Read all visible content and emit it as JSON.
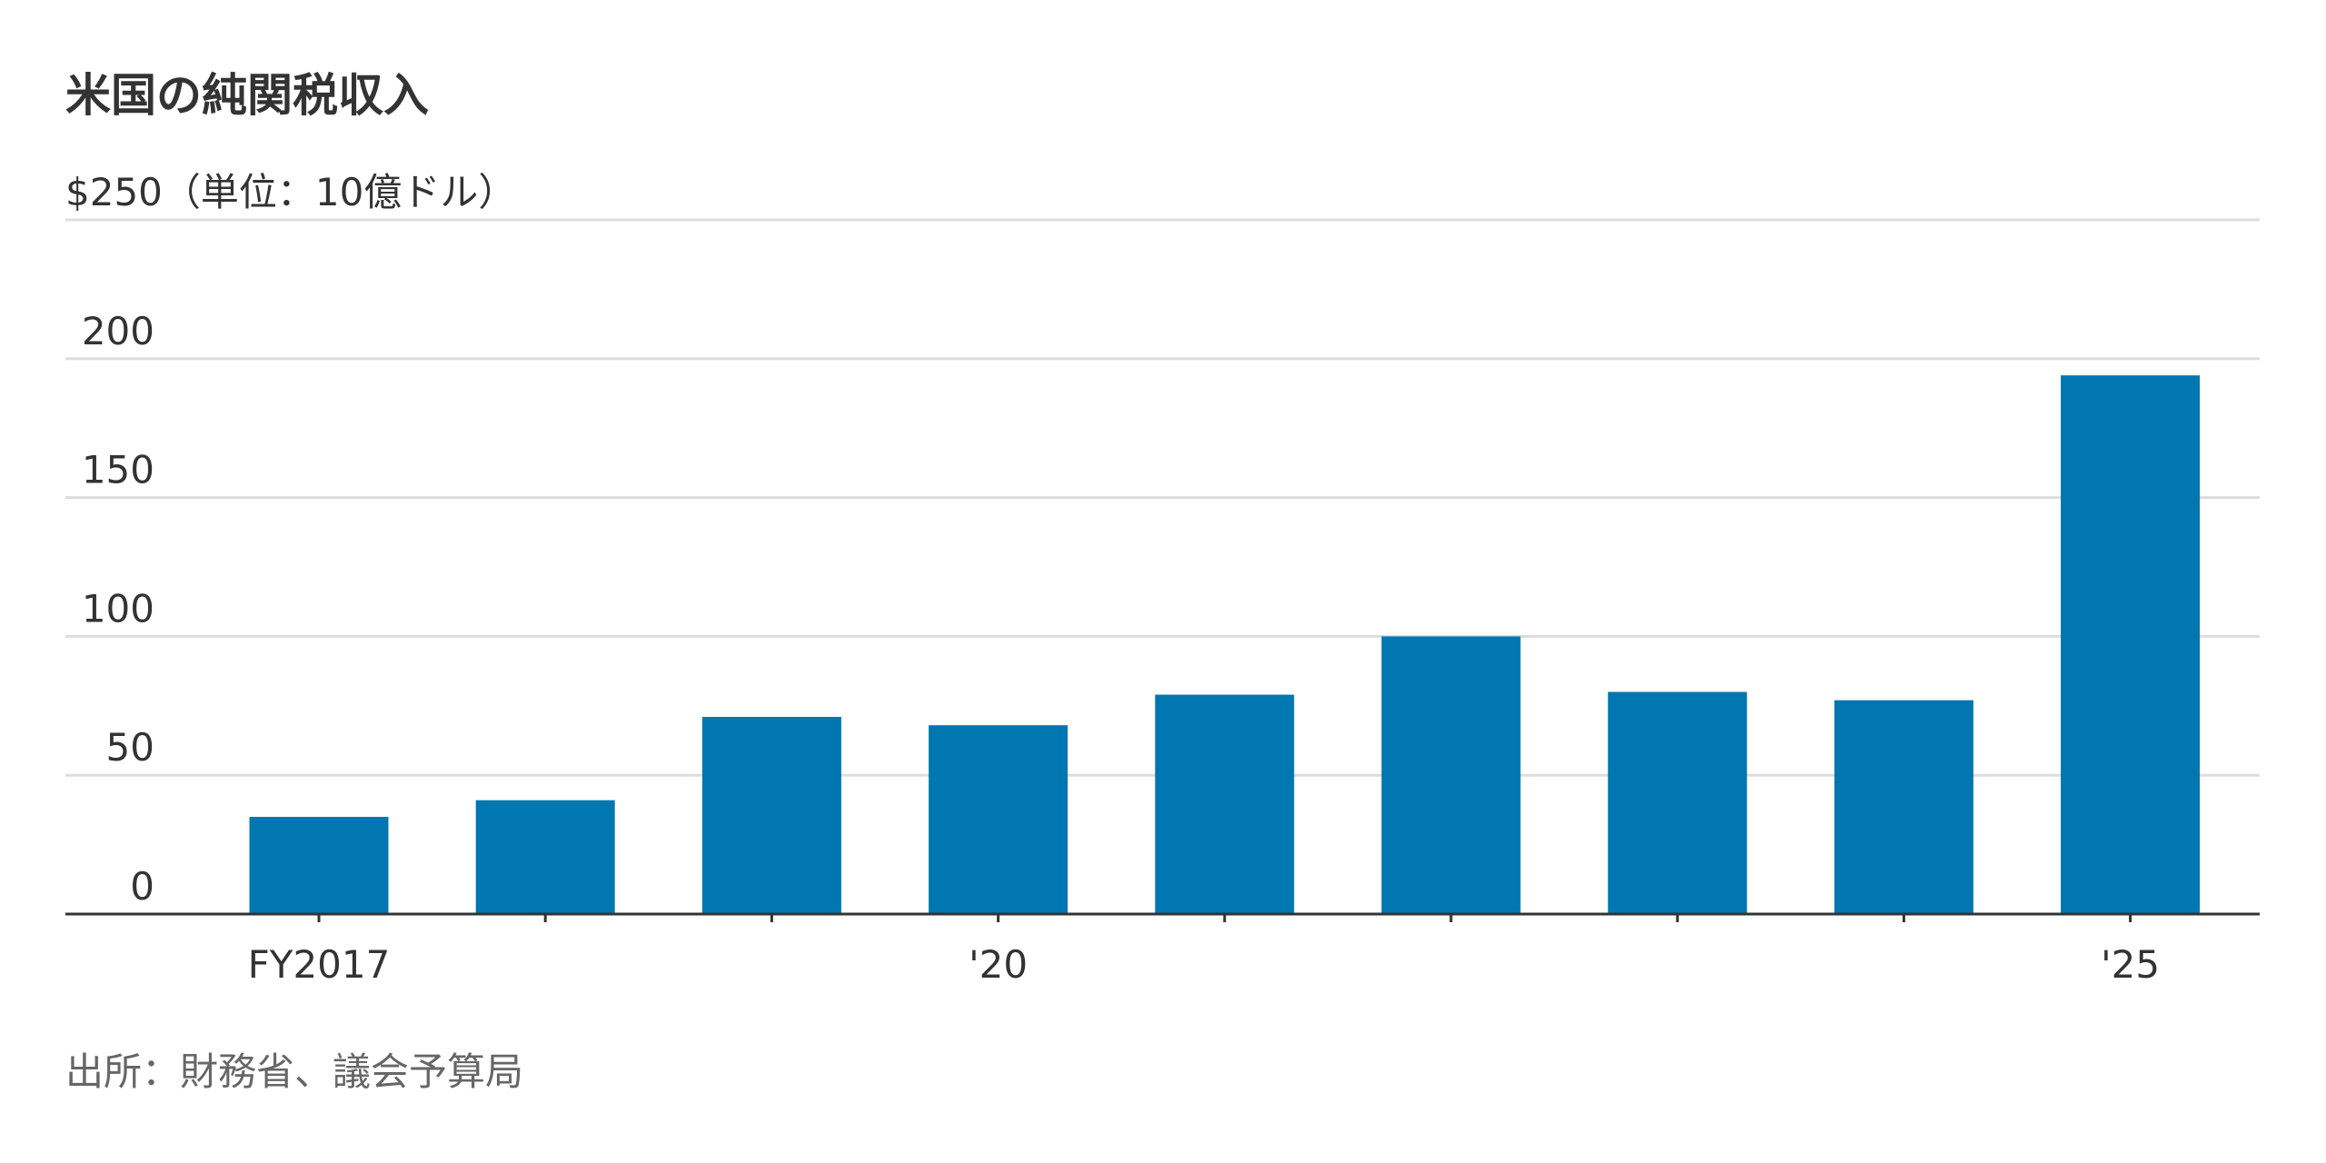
{
  "chart_data": {
    "type": "bar",
    "title": "米国の純関税収入",
    "categories": [
      "FY2017",
      null,
      null,
      "'20",
      null,
      null,
      null,
      null,
      "'25"
    ],
    "values": [
      35,
      41,
      71,
      68,
      79,
      100,
      80,
      77,
      194
    ],
    "color": "#0077b0",
    "ylim": [
      0,
      250
    ],
    "yticks": [
      0,
      50,
      100,
      150,
      200,
      {
        "value": 250,
        "label": "$250（単位：10億ドル）"
      }
    ],
    "grid": true,
    "source": "出所：財務省、議会予算局"
  }
}
